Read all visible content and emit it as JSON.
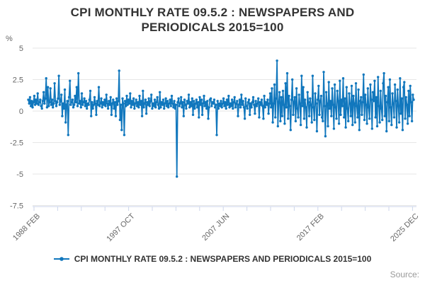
{
  "header": {
    "title_line1": "CPI MONTHLY RATE 09.5.2 : NEWSPAPERS AND",
    "title_line2": "PERIODICALS 2015=100"
  },
  "legend": {
    "label": "CPI MONTHLY RATE 09.5.2 : NEWSPAPERS AND PERIODICALS 2015=100"
  },
  "footer": {
    "source_label": "Source:"
  },
  "chart_data": {
    "type": "line",
    "title": "CPI MONTHLY RATE 09.5.2 : NEWSPAPERS AND PERIODICALS 2015=100",
    "subtitle": "",
    "xlabel": "",
    "ylabel": "%",
    "ylim": [
      -7.5,
      5
    ],
    "grid": true,
    "legend_position": "bottom",
    "frequency": "monthly",
    "x_start": "1988 FEB",
    "x_end": "2025 DEC",
    "line_color": "#1177bd",
    "grid_color": "#e6e6e6",
    "axis_color": "#ccd6eb",
    "label_color": "#666666",
    "title_color": "#333333",
    "source_color": "#999999",
    "y_ticks": [
      {
        "value": 5,
        "label": "5"
      },
      {
        "value": 2.5,
        "label": "2.5"
      },
      {
        "value": 0,
        "label": "0"
      },
      {
        "value": -2.5,
        "label": "-2.5"
      },
      {
        "value": -5,
        "label": "-5"
      },
      {
        "value": -7.5,
        "label": "-7.5"
      }
    ],
    "x_ticks": [
      {
        "index": 0,
        "label": "1988 FEB"
      },
      {
        "index": 4,
        "label": "1997 OCT"
      },
      {
        "index": 8,
        "label": "2007 JUN"
      },
      {
        "index": 12,
        "label": "2017 FEB"
      },
      {
        "index": 16,
        "label": "2025 DEC"
      }
    ],
    "values": [
      0.9,
      0.6,
      1.1,
      0.4,
      0.8,
      0.3,
      0.7,
      1.2,
      0.5,
      0.9,
      0.6,
      1.4,
      0.5,
      0.7,
      0.9,
      0.4,
      0.2,
      0.8,
      1.5,
      0.6,
      1.0,
      2.6,
      0.3,
      1.9,
      0.4,
      0.7,
      1.8,
      0.5,
      0.9,
      0.3,
      0.6,
      2.2,
      0.8,
      0.4,
      0.7,
      1.0,
      2.8,
      0.5,
      0.8,
      1.3,
      -0.4,
      0.6,
      0.2,
      1.7,
      -0.9,
      0.5,
      0.8,
      -1.9,
      1.1,
      2.4,
      0.5,
      0.7,
      0.9,
      0.3,
      0.5,
      1.2,
      0.7,
      1.9,
      0.4,
      3.0,
      0.6,
      0.8,
      0.3,
      1.4,
      0.5,
      0.7,
      1.0,
      0.4,
      0.8,
      0.2,
      0.6,
      0.5,
      0.9,
      1.6,
      -0.4,
      0.7,
      0.2,
      0.5,
      1.1,
      0.6,
      -0.3,
      0.8,
      0.5,
      1.9,
      0.4,
      0.6,
      1.0,
      0.3,
      0.7,
      0.5,
      0.9,
      0.4,
      1.3,
      0.6,
      0.2,
      0.8,
      0.5,
      1.1,
      -0.3,
      0.6,
      0.9,
      0.2,
      0.7,
      -0.4,
      1.0,
      0.5,
      0.8,
      3.2,
      -0.7,
      0.5,
      -1.5,
      1.0,
      0.6,
      -1.9,
      0.8,
      0.4,
      1.2,
      0.5,
      0.9,
      0.6,
      1.4,
      0.3,
      0.8,
      0.5,
      1.0,
      0.2,
      0.6,
      0.9,
      0.4,
      0.7,
      0.3,
      1.2,
      0.5,
      0.8,
      -0.4,
      1.6,
      0.3,
      0.6,
      0.9,
      -0.2,
      0.7,
      0.5,
      1.0,
      0.4,
      0.8,
      1.3,
      0.2,
      0.6,
      0.4,
      0.9,
      0.3,
      0.7,
      1.1,
      0.5,
      0.2,
      1.5,
      0.3,
      0.7,
      0.5,
      0.9,
      0.2,
      0.6,
      1.0,
      0.4,
      0.8,
      0.3,
      0.6,
      0.9,
      0.4,
      1.2,
      0.6,
      0.3,
      0.8,
      0.2,
      0.5,
      -5.2,
      0.7,
      1.0,
      0.4,
      0.6,
      1.1,
      0.3,
      0.7,
      -0.4,
      0.9,
      0.5,
      0.2,
      0.8,
      0.6,
      1.3,
      0.3,
      0.7,
      0.4,
      1.0,
      -0.3,
      0.8,
      0.2,
      0.6,
      0.9,
      0.3,
      0.7,
      -0.5,
      1.1,
      0.5,
      0.9,
      -0.3,
      0.6,
      1.2,
      0.4,
      0.7,
      0.2,
      0.8,
      -0.6,
      0.3,
      0.9,
      1.0,
      0.4,
      0.7,
      0.6,
      0.9,
      0.3,
      0.5,
      -1.9,
      0.8,
      0.2,
      0.6,
      0.4,
      0.8,
      0.3,
      0.6,
      1.0,
      0.4,
      0.7,
      0.2,
      0.9,
      0.5,
      1.2,
      0.3,
      0.6,
      0.4,
      0.9,
      0.2,
      0.7,
      1.1,
      0.3,
      0.6,
      0.8,
      -0.4,
      0.5,
      0.9,
      0.3,
      1.3,
      0.5,
      0.8,
      0.3,
      -0.6,
      1.0,
      0.4,
      0.2,
      0.7,
      0.9,
      -0.3,
      0.6,
      0.3,
      0.7,
      1.1,
      0.5,
      -0.2,
      0.8,
      0.4,
      0.6,
      1.0,
      -0.5,
      0.7,
      0.5,
      0.9,
      0.4,
      -0.6,
      1.2,
      0.3,
      0.7,
      0.5,
      0.9,
      -0.2,
      0.6,
      1.4,
      0.3,
      1.8,
      -0.9,
      0.6,
      2.1,
      -0.5,
      1.0,
      4.0,
      -1.2,
      0.7,
      1.5,
      -0.8,
      1.1,
      -0.4,
      1.6,
      0.5,
      -1.0,
      2.2,
      0.3,
      3.0,
      -0.6,
      1.2,
      0.4,
      -1.5,
      0.9,
      2.5,
      -0.3,
      0.7,
      1.1,
      -0.8,
      1.8,
      0.2,
      -0.5,
      1.3,
      0.6,
      -1.1,
      2.8,
      0.4,
      1.9,
      -0.6,
      0.9,
      0.3,
      -1.3,
      1.5,
      0.7,
      -0.4,
      1.0,
      0.5,
      -0.9,
      2.8,
      0.3,
      -0.7,
      1.4,
      0.6,
      -1.6,
      0.9,
      2.0,
      -0.3,
      0.8,
      1.2,
      -0.5,
      -0.8,
      3.1,
      0.4,
      -2.0,
      1.5,
      0.6,
      -1.2,
      2.3,
      0.2,
      0.8,
      -0.4,
      1.8,
      0.5,
      -1.4,
      2.1,
      0.3,
      -0.6,
      1.6,
      0.8,
      -1.0,
      2.4,
      -0.3,
      0.9,
      0.4,
      2.6,
      -0.5,
      1.0,
      -1.3,
      1.9,
      0.2,
      -0.8,
      1.4,
      0.6,
      -0.4,
      2.0,
      -1.1,
      1.2,
      0.6,
      -0.9,
      2.2,
      0.4,
      -0.5,
      1.7,
      -1.5,
      0.8,
      1.1,
      -0.3,
      0.7,
      2.9,
      -0.7,
      1.3,
      0.5,
      -1.0,
      1.8,
      0.3,
      -0.6,
      2.1,
      0.9,
      -1.4,
      1.5,
      0.8,
      2.4,
      -0.5,
      1.1,
      -1.2,
      2.7,
      0.4,
      -0.9,
      1.6,
      0.2,
      -0.7,
      2.2,
      3.0,
      -0.4,
      1.2,
      -1.6,
      0.7,
      1.9,
      -0.8,
      2.5,
      0.3,
      -1.1,
      1.4,
      0.6,
      -0.5,
      2.1,
      0.8,
      -1.3,
      1.7,
      0.4,
      -0.9,
      2.6,
      -0.2,
      1.0,
      -1.5,
      1.9,
      2.3,
      -0.6,
      1.1,
      0.5,
      -1.0,
      1.6,
      -0.4,
      2.0,
      0.7,
      -0.8,
      1.3,
      0.9
    ]
  }
}
